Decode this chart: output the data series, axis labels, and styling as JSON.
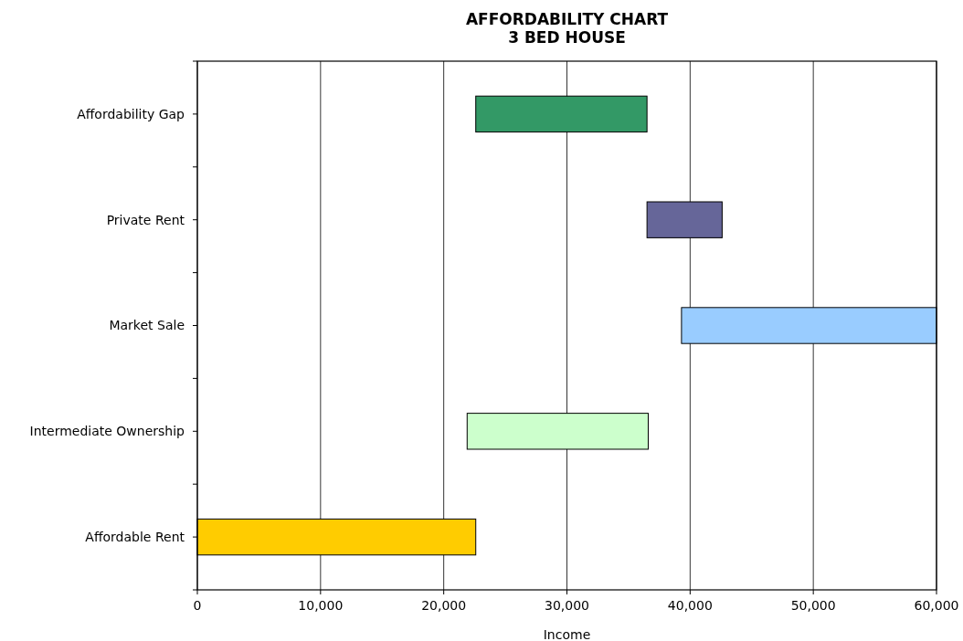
{
  "chart_data": {
    "type": "bar",
    "orientation": "horizontal",
    "title": "AFFORDABILITY CHART\n3 BED HOUSE",
    "xlabel": "Income",
    "categories": [
      "Affordability Gap",
      "Private Rent",
      "Market Sale",
      "Intermediate Ownership",
      "Affordable Rent"
    ],
    "values": [
      13900,
      6100,
      20700,
      14700,
      22600
    ],
    "base": [
      22600,
      36500,
      39300,
      21900,
      0
    ],
    "colors": [
      "#339966",
      "#666699",
      "#99ccff",
      "#ccffcc",
      "#ffcc00"
    ],
    "xlim": [
      0,
      60000
    ],
    "xticks": [
      0,
      {
        "value": 10000,
        "label": "10,000"
      },
      {
        "value": 20000,
        "label": "20,000"
      },
      {
        "value": 30000,
        "label": "30,000"
      },
      {
        "value": 40000,
        "label": "40,000"
      },
      {
        "value": 50000,
        "label": "50,000"
      },
      {
        "value": 60000,
        "label": "60,000"
      }
    ],
    "grid": "x"
  }
}
